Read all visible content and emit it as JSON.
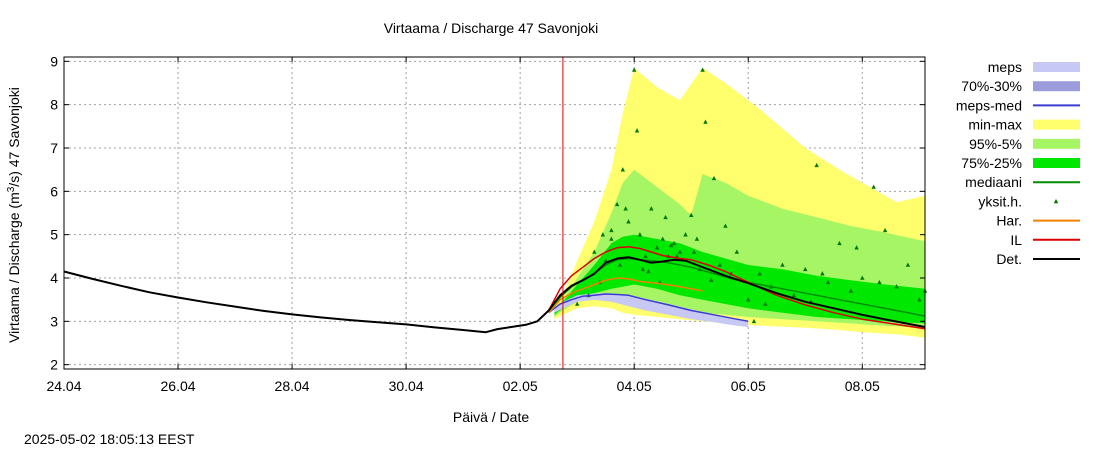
{
  "footer_timestamp": "2025-05-02 18:05:13 EEST",
  "chart_data": {
    "type": "line",
    "title": "Virtaama / Discharge  47 Savonjoki",
    "xlabel": "Päivä / Date",
    "ylabel_parts": [
      "Virtaama / Discharge (m",
      "3",
      "/s)  47 Savonjoki"
    ],
    "x_ticks": [
      {
        "d": 0,
        "label": "24.04"
      },
      {
        "d": 2,
        "label": "26.04"
      },
      {
        "d": 4,
        "label": "28.04"
      },
      {
        "d": 6,
        "label": "30.04"
      },
      {
        "d": 8,
        "label": "02.05"
      },
      {
        "d": 10,
        "label": "04.05"
      },
      {
        "d": 12,
        "label": "06.05"
      },
      {
        "d": 14,
        "label": "08.05"
      }
    ],
    "xlim_days": [
      0,
      15.1
    ],
    "ylim": [
      1.9,
      9.1
    ],
    "y_ticks": [
      2,
      3,
      4,
      5,
      6,
      7,
      8,
      9
    ],
    "grid": true,
    "now_marker_day": 8.75,
    "legend_position": "right",
    "legend": [
      {
        "label": "meps",
        "kind": "box",
        "color": "#c8c8f4"
      },
      {
        "label": "70%-30%",
        "kind": "box",
        "color": "#9c9cdc"
      },
      {
        "label": "meps-med",
        "kind": "line",
        "color": "#3c3cd2"
      },
      {
        "label": "min-max",
        "kind": "box",
        "color": "#ffff6e"
      },
      {
        "label": "95%-5%",
        "kind": "box",
        "color": "#a6f564"
      },
      {
        "label": "75%-25%",
        "kind": "box",
        "color": "#00e800"
      },
      {
        "label": "mediaani",
        "kind": "line",
        "color": "#008c00"
      },
      {
        "label": "yksit.h.",
        "kind": "point",
        "color": "#007800"
      },
      {
        "label": "Har.",
        "kind": "line",
        "color": "#f08200"
      },
      {
        "label": "IL",
        "kind": "line",
        "color": "#dc0000"
      },
      {
        "label": "Det.",
        "kind": "line",
        "color": "#000000"
      }
    ],
    "bands": {
      "minmax": {
        "x": [
          8.6,
          8.75,
          9.0,
          9.3,
          9.6,
          9.8,
          10.0,
          10.4,
          10.8,
          11.2,
          11.6,
          12.2,
          13.0,
          13.6,
          14.0,
          14.6,
          15.1
        ],
        "lo": [
          3.05,
          3.15,
          3.3,
          3.35,
          3.3,
          3.2,
          3.15,
          3.1,
          3.05,
          3.0,
          2.95,
          2.9,
          2.85,
          2.8,
          2.75,
          2.7,
          2.62
        ],
        "hi": [
          3.3,
          3.6,
          4.4,
          5.3,
          6.5,
          7.8,
          8.85,
          8.4,
          8.1,
          8.85,
          8.5,
          7.9,
          7.0,
          6.5,
          6.2,
          5.75,
          5.9
        ]
      },
      "p95_5": {
        "x": [
          8.6,
          8.75,
          9.0,
          9.3,
          9.6,
          9.8,
          10.0,
          10.4,
          10.8,
          11.0,
          11.2,
          11.6,
          12.0,
          12.6,
          13.2,
          13.8,
          14.4,
          15.1
        ],
        "lo": [
          3.1,
          3.25,
          3.45,
          3.5,
          3.45,
          3.4,
          3.35,
          3.3,
          3.25,
          3.2,
          3.2,
          3.15,
          3.1,
          3.05,
          3.0,
          2.95,
          2.9,
          2.85
        ],
        "hi": [
          3.25,
          3.5,
          4.0,
          4.6,
          5.5,
          6.2,
          6.5,
          6.1,
          5.7,
          5.45,
          6.4,
          6.2,
          5.9,
          5.6,
          5.4,
          5.2,
          5.05,
          4.85
        ]
      },
      "p75_25": {
        "x": [
          8.6,
          8.75,
          9.0,
          9.3,
          9.6,
          9.8,
          10.0,
          10.4,
          10.8,
          11.2,
          11.6,
          12.0,
          12.6,
          13.2,
          13.8,
          14.4,
          15.1
        ],
        "lo": [
          3.15,
          3.3,
          3.55,
          3.65,
          3.75,
          3.8,
          3.85,
          3.75,
          3.6,
          3.5,
          3.4,
          3.3,
          3.2,
          3.1,
          3.05,
          3.0,
          2.95
        ],
        "hi": [
          3.2,
          3.45,
          3.85,
          4.3,
          4.8,
          4.95,
          5.0,
          4.9,
          4.8,
          4.6,
          4.45,
          4.3,
          4.2,
          4.05,
          3.95,
          3.85,
          3.75
        ]
      },
      "meps": {
        "x": [
          8.6,
          8.75,
          9.0,
          9.3,
          9.6,
          9.9,
          10.2,
          10.6,
          11.0,
          11.4,
          11.8,
          12.0
        ],
        "lo": [
          3.2,
          3.3,
          3.45,
          3.5,
          3.45,
          3.35,
          3.25,
          3.15,
          3.05,
          2.98,
          2.9,
          2.87
        ],
        "hi": [
          3.3,
          3.45,
          3.6,
          3.65,
          3.65,
          3.6,
          3.52,
          3.4,
          3.28,
          3.16,
          3.06,
          3.0
        ]
      }
    },
    "series": [
      {
        "name": "Det.",
        "color": "#000000",
        "x": [
          0,
          0.5,
          1.0,
          1.5,
          2.0,
          2.5,
          3.0,
          3.5,
          4.0,
          4.5,
          5.0,
          5.5,
          6.0,
          6.5,
          7.0,
          7.4,
          7.6,
          7.9,
          8.1,
          8.3,
          8.5,
          8.7,
          8.9,
          9.1,
          9.3,
          9.5,
          9.7,
          9.9,
          10.1,
          10.3,
          10.5,
          10.7,
          10.9,
          11.1,
          11.3,
          11.6,
          12.0,
          12.5,
          13.0,
          13.5,
          14.0,
          14.5,
          15.1
        ],
        "y": [
          4.15,
          3.98,
          3.82,
          3.67,
          3.55,
          3.44,
          3.34,
          3.24,
          3.16,
          3.09,
          3.03,
          2.98,
          2.93,
          2.86,
          2.8,
          2.75,
          2.82,
          2.88,
          2.92,
          3.0,
          3.25,
          3.6,
          3.82,
          3.95,
          4.1,
          4.35,
          4.45,
          4.48,
          4.42,
          4.35,
          4.38,
          4.42,
          4.4,
          4.3,
          4.2,
          4.05,
          3.88,
          3.65,
          3.45,
          3.3,
          3.15,
          3.02,
          2.87
        ]
      },
      {
        "name": "IL",
        "color": "#dc0000",
        "x": [
          8.5,
          8.7,
          8.9,
          9.1,
          9.3,
          9.5,
          9.7,
          9.9,
          10.1,
          10.3,
          10.5,
          10.8,
          11.0,
          11.3,
          11.6,
          12.0,
          12.5,
          13.0,
          13.5,
          14.0,
          14.5,
          15.1
        ],
        "y": [
          3.25,
          3.75,
          4.05,
          4.25,
          4.45,
          4.6,
          4.7,
          4.72,
          4.68,
          4.6,
          4.52,
          4.45,
          4.42,
          4.3,
          4.15,
          3.9,
          3.6,
          3.38,
          3.2,
          3.05,
          2.95,
          2.83
        ]
      },
      {
        "name": "mediaani",
        "color": "#008c00",
        "x": [
          8.5,
          8.7,
          8.9,
          9.1,
          9.3,
          9.5,
          9.7,
          9.9,
          10.1,
          10.3,
          10.6,
          11.0,
          11.4,
          11.8,
          12.2,
          12.6,
          13.0,
          13.6,
          14.2,
          14.8,
          15.1
        ],
        "y": [
          3.25,
          3.55,
          3.8,
          3.95,
          4.1,
          4.3,
          4.42,
          4.45,
          4.42,
          4.4,
          4.35,
          4.25,
          4.1,
          3.95,
          3.85,
          3.75,
          3.65,
          3.5,
          3.35,
          3.2,
          3.12
        ]
      },
      {
        "name": "Har.",
        "color": "#f08200",
        "x": [
          8.5,
          8.7,
          8.9,
          9.1,
          9.3,
          9.5,
          9.7,
          9.9,
          10.1,
          10.4,
          10.7,
          11.0,
          11.2
        ],
        "y": [
          3.2,
          3.5,
          3.65,
          3.75,
          3.85,
          3.95,
          4.0,
          3.98,
          3.92,
          3.88,
          3.82,
          3.75,
          3.7
        ]
      },
      {
        "name": "meps-med",
        "color": "#3c3cd2",
        "x": [
          8.5,
          8.7,
          8.9,
          9.1,
          9.3,
          9.5,
          9.7,
          9.9,
          10.2,
          10.6,
          11.0,
          11.4,
          11.8,
          12.0
        ],
        "y": [
          3.2,
          3.4,
          3.5,
          3.58,
          3.6,
          3.63,
          3.62,
          3.6,
          3.5,
          3.38,
          3.25,
          3.15,
          3.05,
          3.0
        ]
      }
    ],
    "points": {
      "name": "yksit.h.",
      "color": "#007800",
      "x": [
        9.0,
        9.2,
        9.4,
        9.5,
        9.6,
        9.7,
        9.8,
        9.9,
        10.0,
        10.05,
        10.1,
        10.2,
        10.3,
        10.4,
        10.5,
        10.6,
        10.7,
        10.8,
        10.9,
        11.0,
        11.1,
        11.2,
        11.25,
        11.4,
        11.5,
        11.6,
        11.7,
        11.8,
        12.0,
        12.2,
        12.4,
        12.6,
        12.8,
        13.0,
        13.2,
        13.4,
        13.6,
        13.8,
        14.0,
        14.2,
        14.4,
        14.6,
        14.8,
        15.0,
        15.1,
        9.6,
        9.75,
        9.85,
        10.15,
        10.45,
        10.55,
        10.75,
        11.05,
        11.15,
        11.35,
        12.1,
        12.3,
        13.1,
        13.3,
        13.9,
        14.3,
        9.3,
        9.45,
        10.25,
        10.65
      ],
      "y": [
        3.4,
        3.6,
        3.9,
        4.4,
        5.1,
        5.7,
        6.5,
        5.3,
        8.8,
        7.4,
        5.0,
        4.5,
        5.6,
        4.7,
        4.9,
        4.5,
        4.8,
        4.6,
        5.0,
        5.45,
        4.9,
        8.8,
        7.6,
        6.3,
        4.3,
        5.2,
        4.1,
        4.6,
        3.5,
        4.1,
        3.8,
        4.3,
        3.6,
        4.2,
        6.6,
        3.9,
        4.8,
        3.7,
        4.0,
        6.1,
        5.1,
        3.8,
        4.3,
        3.5,
        3.7,
        4.9,
        4.3,
        5.6,
        4.2,
        3.9,
        5.4,
        4.5,
        4.6,
        4.2,
        3.95,
        3.0,
        3.4,
        3.45,
        4.1,
        4.7,
        3.9,
        4.6,
        5.0,
        4.15,
        4.75
      ]
    }
  }
}
